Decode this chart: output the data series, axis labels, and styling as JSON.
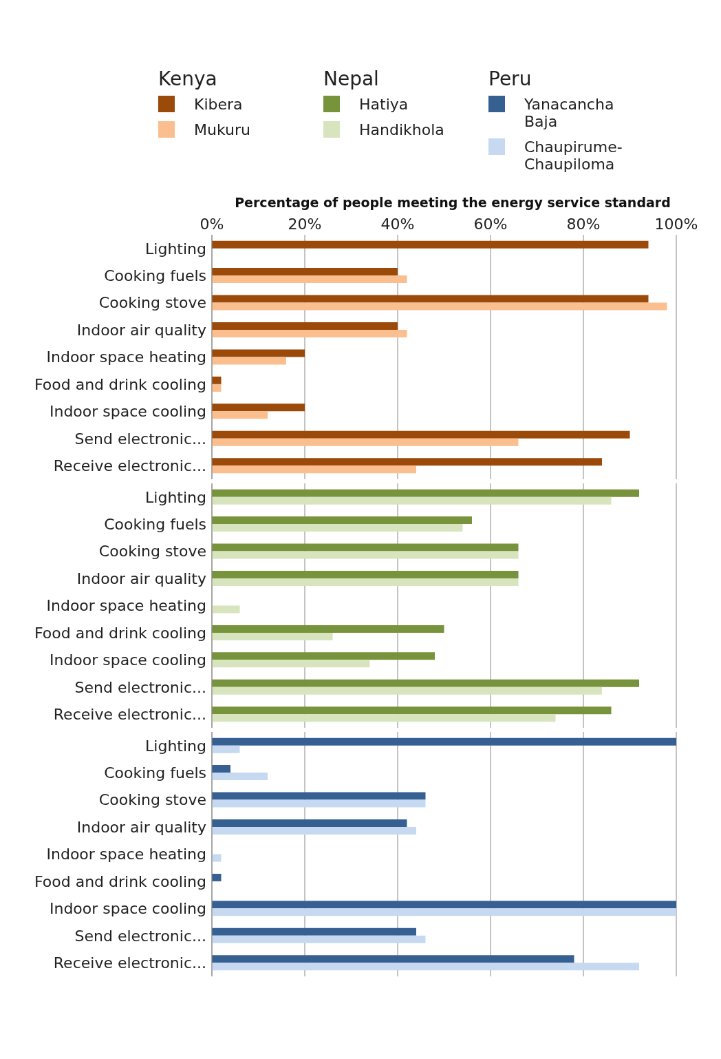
{
  "chart_data": [
    {
      "type": "bar",
      "orientation": "horizontal",
      "legend_title": "Kenya",
      "legend": "top",
      "grid": "x",
      "xlabel": "Percentage of people meeting the energy service standard",
      "categories": [
        "Lighting",
        "Cooking fuels",
        "Cooking stove",
        "Indoor air quality",
        "Indoor space heating",
        "Food and drink cooling",
        "Indoor space cooling",
        "Send electronic...",
        "Receive electronic..."
      ],
      "series": [
        {
          "name": "Kibera",
          "color": "#9c4a0a",
          "values": [
            94,
            40,
            94,
            40,
            20,
            2,
            20,
            90,
            84
          ]
        },
        {
          "name": "Mukuru",
          "color": "#fbbf8f",
          "values": [
            null,
            42,
            98,
            42,
            16,
            2,
            12,
            66,
            44
          ]
        }
      ],
      "xlim": [
        0,
        100
      ],
      "xticks": [
        {
          "value": 0,
          "label": "0%"
        },
        {
          "value": 20,
          "label": "20%"
        },
        {
          "value": 40,
          "label": "40%"
        },
        {
          "value": 60,
          "label": "60%"
        },
        {
          "value": 80,
          "label": "80%"
        },
        {
          "value": 100,
          "label": "100%"
        }
      ]
    },
    {
      "type": "bar",
      "orientation": "horizontal",
      "legend_title": "Nepal",
      "legend": "top",
      "grid": "x",
      "tick_labels": "y",
      "categories": [
        "Lighting",
        "Cooking fuels",
        "Cooking stove",
        "Indoor air quality",
        "Indoor space heating",
        "Food and drink cooling",
        "Indoor space cooling",
        "Send electronic...",
        "Receive electronic..."
      ],
      "series": [
        {
          "name": "Hatiya",
          "color": "#77933c",
          "values": [
            92,
            56,
            66,
            66,
            null,
            50,
            48,
            92,
            86
          ]
        },
        {
          "name": "Handikhola",
          "color": "#d7e4bd",
          "values": [
            86,
            54,
            66,
            66,
            6,
            26,
            34,
            84,
            74
          ]
        }
      ],
      "xlim": [
        0,
        100
      ],
      "xticks": [
        0,
        20,
        40,
        60,
        80,
        100
      ]
    },
    {
      "type": "bar",
      "orientation": "horizontal",
      "legend_title": "Peru",
      "legend": "top",
      "grid": "x",
      "tick_labels": "y",
      "categories": [
        "Lighting",
        "Cooking fuels",
        "Cooking stove",
        "Indoor air quality",
        "Indoor space heating",
        "Food and drink cooling",
        "Indoor space cooling",
        "Send electronic...",
        "Receive electronic..."
      ],
      "series": [
        {
          "name": "Yanacancha Baja",
          "color": "#376092",
          "values": [
            100,
            4,
            46,
            42,
            null,
            2,
            100,
            44,
            78
          ]
        },
        {
          "name": "Chaupirume-Chaupiloma",
          "color": "#c6d9f1",
          "values": [
            6,
            12,
            46,
            44,
            2,
            null,
            100,
            46,
            92
          ]
        }
      ],
      "xlim": [
        0,
        100
      ],
      "xticks": [
        0,
        20,
        40,
        60,
        80,
        100
      ]
    }
  ]
}
